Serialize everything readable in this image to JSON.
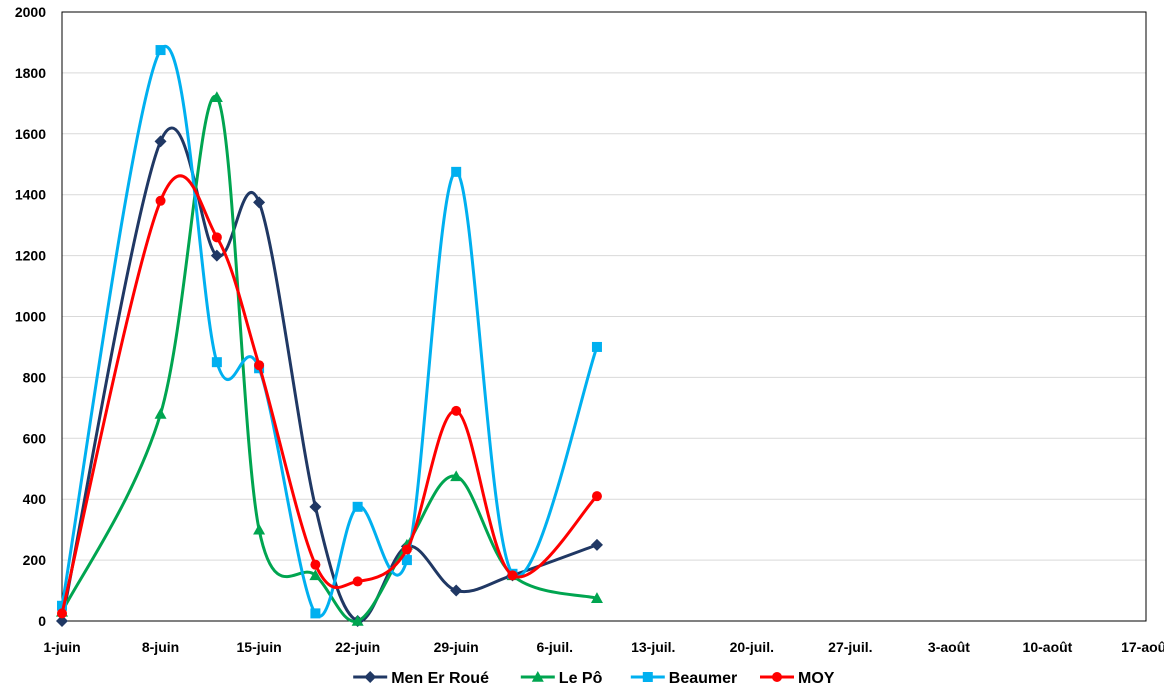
{
  "chart_data": {
    "type": "line",
    "title": "",
    "xlabel": "",
    "ylabel": "",
    "ylim": [
      0,
      2000
    ],
    "yticks": [
      0,
      200,
      400,
      600,
      800,
      1000,
      1200,
      1400,
      1600,
      1800,
      2000
    ],
    "grid": true,
    "legend": "bottom",
    "xlim_day": [
      0,
      77
    ],
    "x_ticks": [
      {
        "label": "1-juin",
        "day": 0
      },
      {
        "label": "8-juin",
        "day": 7
      },
      {
        "label": "15-juin",
        "day": 14
      },
      {
        "label": "22-juin",
        "day": 21
      },
      {
        "label": "29-juin",
        "day": 28
      },
      {
        "label": "6-juil.",
        "day": 35
      },
      {
        "label": "13-juil.",
        "day": 42
      },
      {
        "label": "20-juil.",
        "day": 49
      },
      {
        "label": "27-juil.",
        "day": 56
      },
      {
        "label": "3-août",
        "day": 63
      },
      {
        "label": "10-août",
        "day": 70
      },
      {
        "label": "17-août",
        "day": 77
      }
    ],
    "series": [
      {
        "name": "Men Er Roué",
        "color": "#203864",
        "marker": "diamond",
        "points": [
          [
            0,
            0
          ],
          [
            7,
            1575
          ],
          [
            11,
            1200
          ],
          [
            14,
            1375
          ],
          [
            18,
            375
          ],
          [
            21,
            0
          ],
          [
            24.5,
            245
          ],
          [
            28,
            100
          ],
          [
            32,
            150
          ],
          [
            38,
            250
          ]
        ]
      },
      {
        "name": "Le Pô",
        "color": "#00A550",
        "marker": "triangle",
        "points": [
          [
            0,
            30
          ],
          [
            7,
            680
          ],
          [
            11,
            1720
          ],
          [
            14,
            300
          ],
          [
            18,
            150
          ],
          [
            21,
            0
          ],
          [
            24.5,
            250
          ],
          [
            28,
            475
          ],
          [
            32,
            150
          ],
          [
            38,
            75
          ]
        ]
      },
      {
        "name": "Beaumer",
        "color": "#00B0F0",
        "marker": "square",
        "points": [
          [
            0,
            50
          ],
          [
            7,
            1875
          ],
          [
            11,
            850
          ],
          [
            14,
            830
          ],
          [
            18,
            25
          ],
          [
            21,
            375
          ],
          [
            24.5,
            200
          ],
          [
            28,
            1475
          ],
          [
            32,
            155
          ],
          [
            38,
            900
          ]
        ]
      },
      {
        "name": "MOY",
        "color": "#FF0000",
        "marker": "circle",
        "points": [
          [
            0,
            25
          ],
          [
            7,
            1380
          ],
          [
            11,
            1260
          ],
          [
            14,
            840
          ],
          [
            18,
            185
          ],
          [
            21,
            130
          ],
          [
            24.5,
            235
          ],
          [
            28,
            690
          ],
          [
            32,
            150
          ],
          [
            38,
            410
          ]
        ]
      }
    ]
  }
}
